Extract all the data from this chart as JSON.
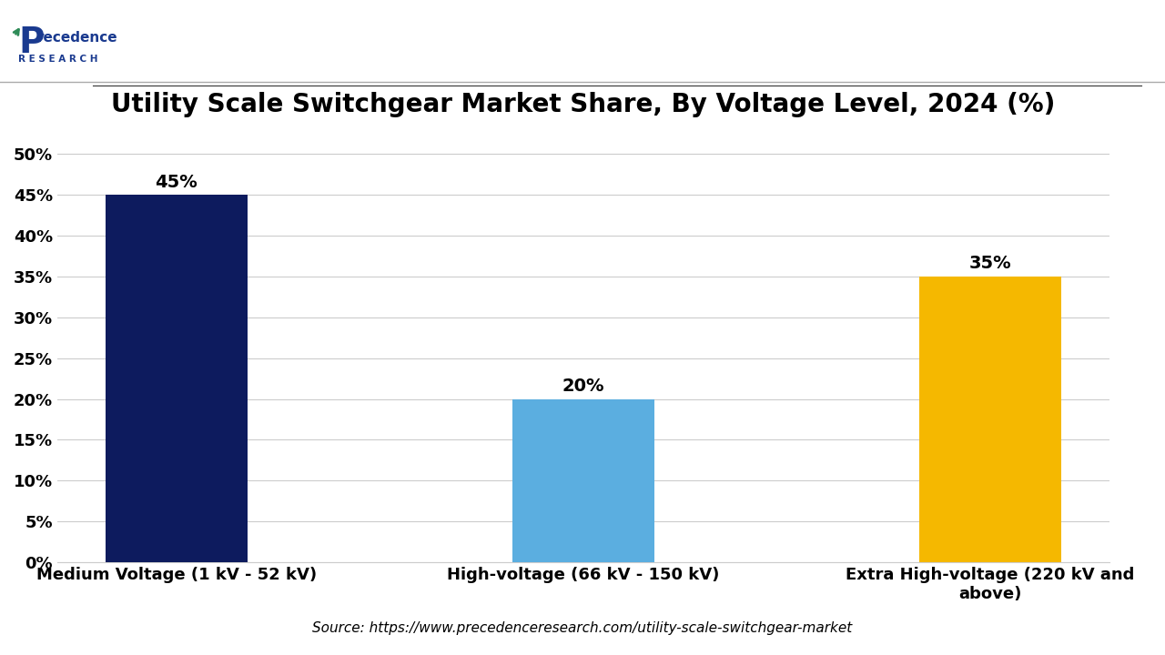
{
  "title": "Utility Scale Switchgear Market Share, By Voltage Level, 2024 (%)",
  "categories": [
    "Medium Voltage (1 kV - 52 kV)",
    "High-voltage (66 kV - 150 kV)",
    "Extra High-voltage (220 kV and\nabove)"
  ],
  "values": [
    45,
    20,
    35
  ],
  "bar_colors": [
    "#0d1b5e",
    "#5baee0",
    "#f5b800"
  ],
  "ylim": [
    0,
    52
  ],
  "yticks": [
    0,
    5,
    10,
    15,
    20,
    25,
    30,
    35,
    40,
    45,
    50
  ],
  "ytick_labels": [
    "0%",
    "5%",
    "10%",
    "15%",
    "20%",
    "25%",
    "30%",
    "35%",
    "40%",
    "45%",
    "50%"
  ],
  "bar_labels": [
    "45%",
    "20%",
    "35%"
  ],
  "source_text": "Source: https://www.precedenceresearch.com/utility-scale-switchgear-market",
  "background_color": "#ffffff",
  "title_fontsize": 20,
  "label_fontsize": 13,
  "tick_fontsize": 13,
  "bar_label_fontsize": 14,
  "source_fontsize": 11,
  "grid_color": "#cccccc",
  "logo_text_line1": "Precedence",
  "logo_text_line2": "R E S E A R C H"
}
